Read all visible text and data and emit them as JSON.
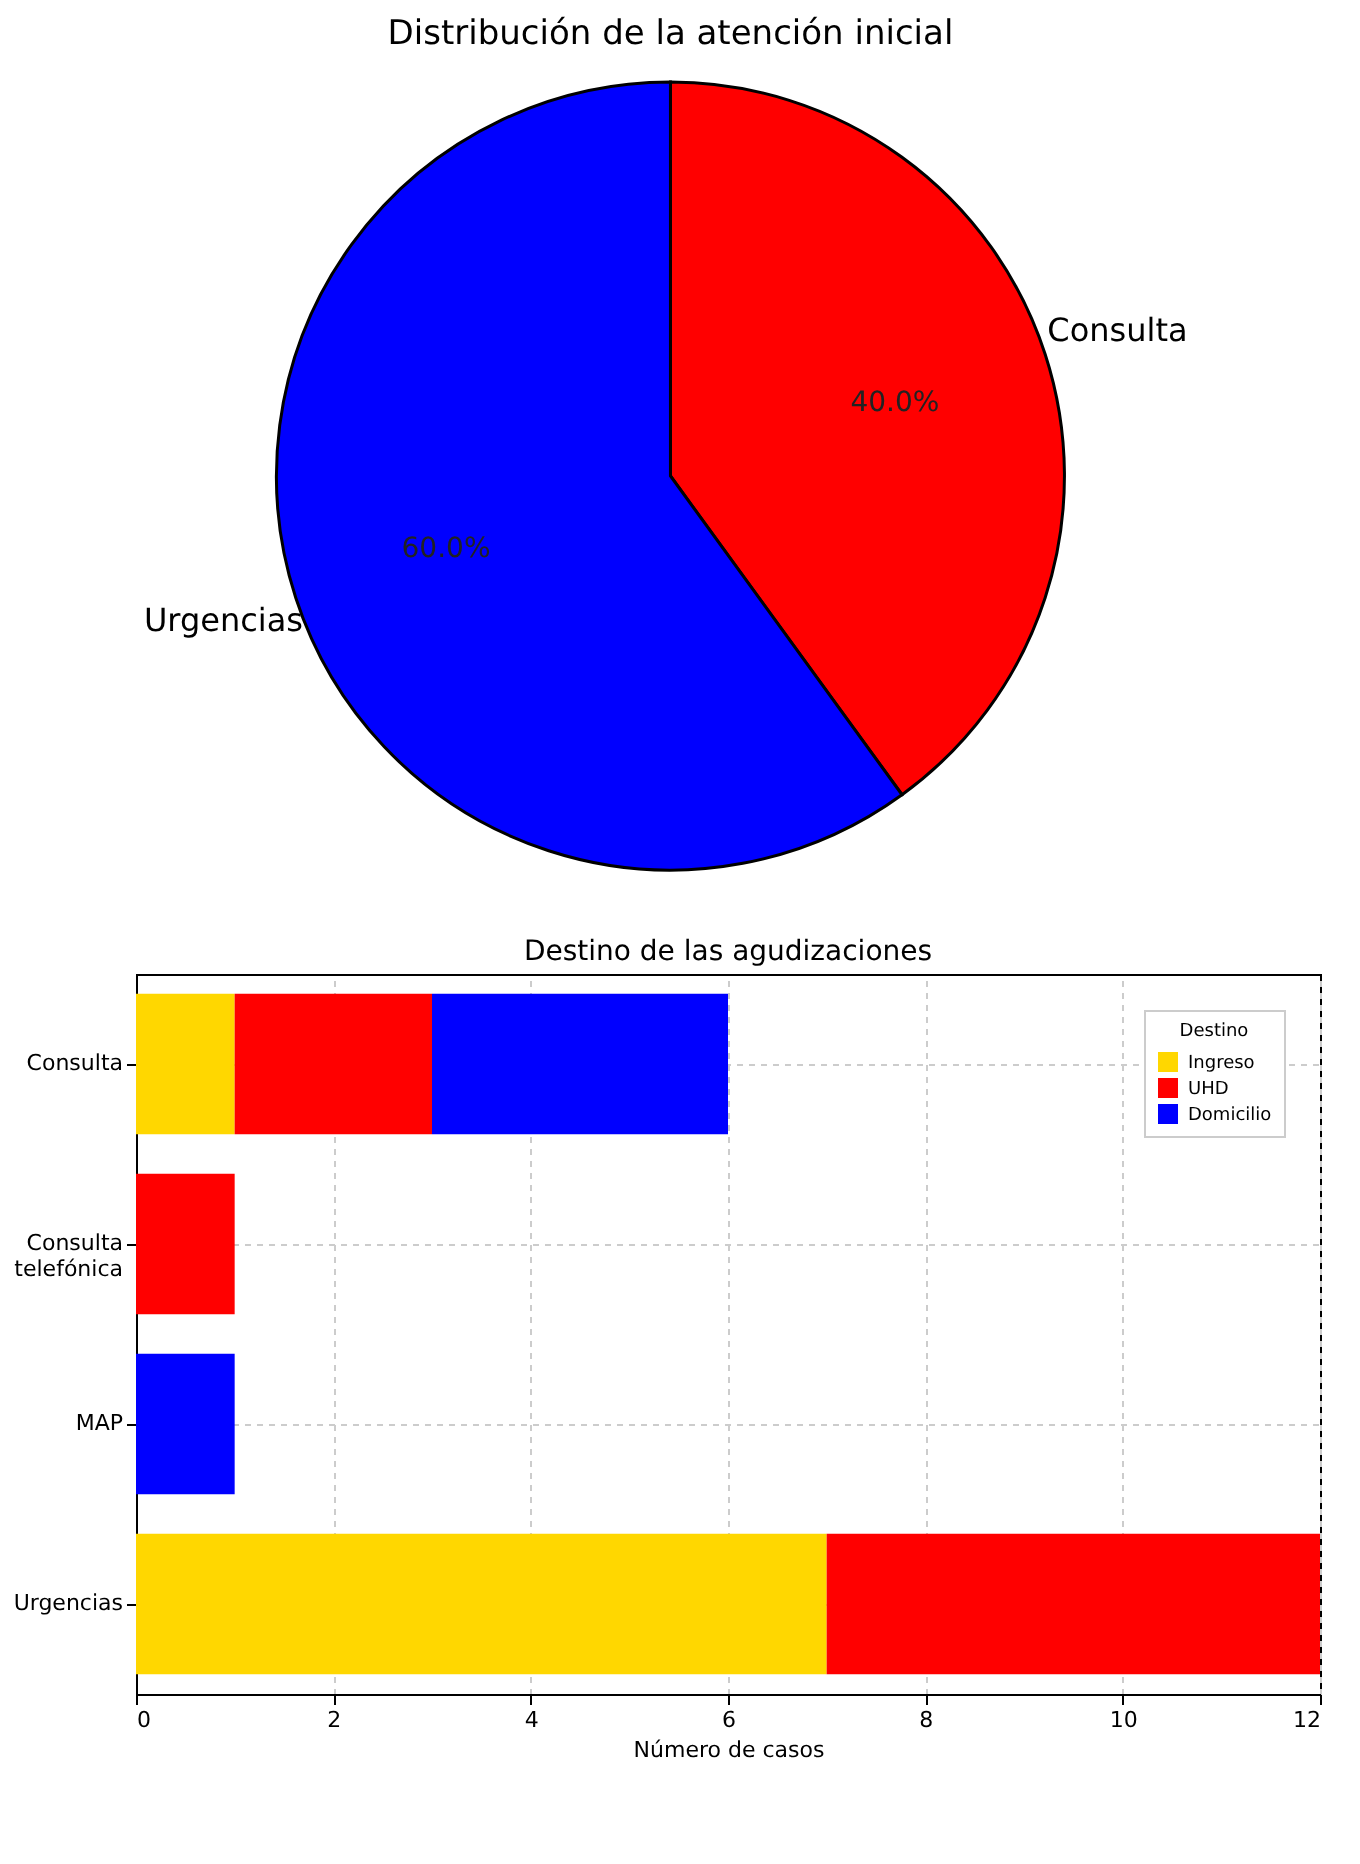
{
  "chart_data": [
    {
      "type": "pie",
      "title": "Distribución de la atención inicial",
      "categories": [
        "Consulta",
        "Urgencias"
      ],
      "values": [
        40,
        60
      ],
      "colors": [
        "#ff0000",
        "#0000ff"
      ],
      "value_labels": [
        "40.0%",
        "60.0%"
      ]
    },
    {
      "type": "bar",
      "orientation": "horizontal",
      "stacked": true,
      "title": "Destino de las agudizaciones",
      "xlabel": "Número de casos",
      "legend_title": "Destino",
      "legend": "top right",
      "grid": true,
      "categories": [
        "Consulta",
        "Consulta telefónica",
        "MAP",
        "Urgencias"
      ],
      "xlim": [
        0,
        12
      ],
      "xticks": [
        0,
        2,
        4,
        6,
        8,
        10,
        12
      ],
      "series": [
        {
          "name": "Ingreso",
          "color": "#ffd700",
          "values": [
            1,
            null,
            null,
            7
          ]
        },
        {
          "name": "UHD",
          "color": "#ff0000",
          "values": [
            2,
            1,
            null,
            5
          ]
        },
        {
          "name": "Domicilio",
          "color": "#0000ff",
          "values": [
            3,
            null,
            1,
            null
          ]
        }
      ]
    }
  ]
}
